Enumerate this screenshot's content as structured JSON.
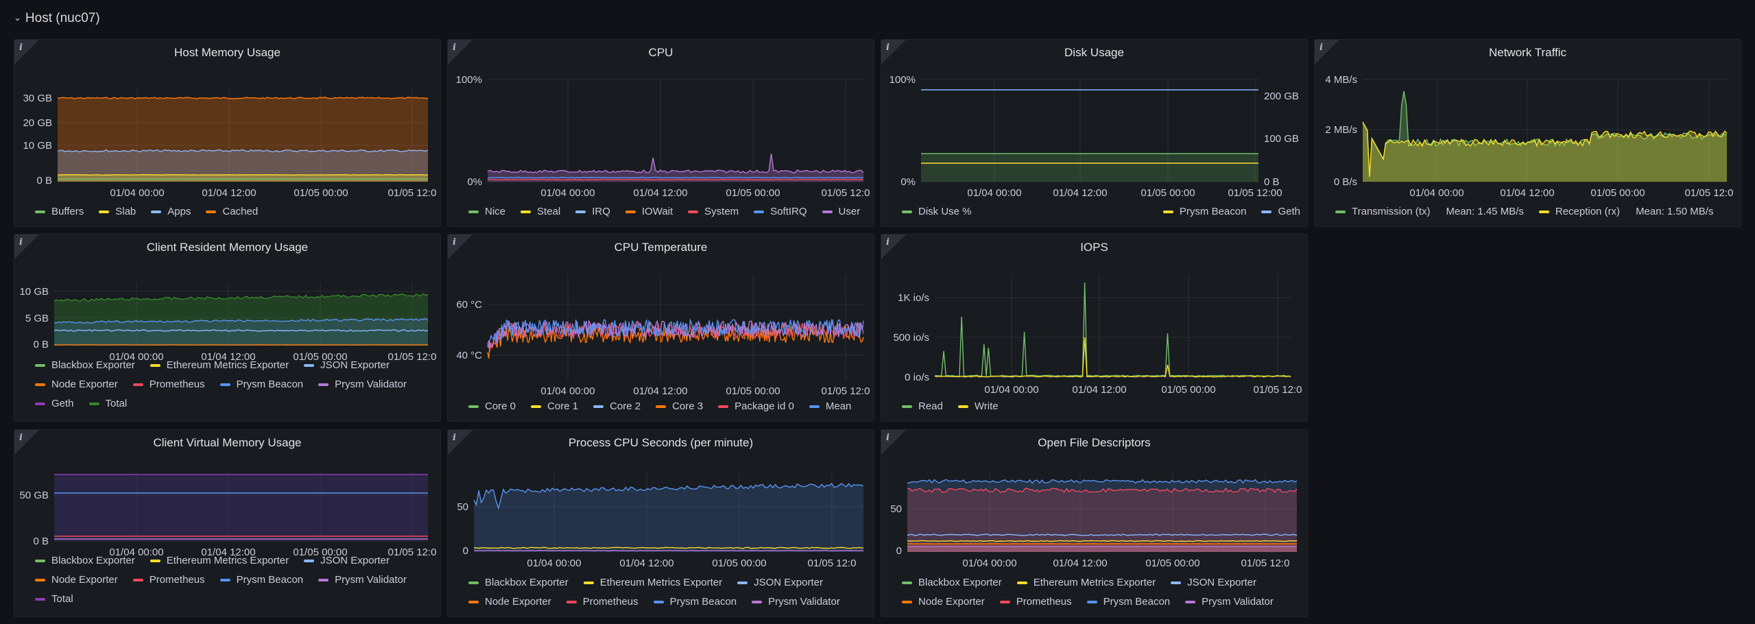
{
  "row": {
    "title": "Host (nuc07)",
    "chevron": "chevron-down-icon"
  },
  "colors": {
    "green": "#73bf69",
    "yellow": "#fade2a",
    "blue": "#8ab8ff",
    "orange": "#ff780a",
    "red": "#f2495c",
    "brightBlue": "#5794f2",
    "purple": "#b877d9",
    "darkPurple": "#8f3bb8",
    "darkGreen": "#37872d",
    "grid": "#2a2d33"
  },
  "panels": [
    {
      "id": "host-memory",
      "title": "Host Memory Usage",
      "yAxis": [
        "30 GB",
        "20 GB",
        "10 GB",
        "0 B"
      ],
      "xAxis": [
        "01/04 00:00",
        "01/04 12:00",
        "01/05 00:00",
        "01/05 12:0"
      ],
      "legend": [
        {
          "label": "Buffers",
          "color": "#73bf69"
        },
        {
          "label": "Slab",
          "color": "#fade2a"
        },
        {
          "label": "Apps",
          "color": "#8ab8ff"
        },
        {
          "label": "Cached",
          "color": "#ff780a"
        }
      ]
    },
    {
      "id": "cpu",
      "title": "CPU",
      "yAxis": [
        "100%",
        "0%"
      ],
      "xAxis": [
        "01/04 00:00",
        "01/04 12:00",
        "01/05 00:00",
        "01/05 12:0"
      ],
      "legend": [
        {
          "label": "Nice",
          "color": "#73bf69"
        },
        {
          "label": "Steal",
          "color": "#fade2a"
        },
        {
          "label": "IRQ",
          "color": "#8ab8ff"
        },
        {
          "label": "IOWait",
          "color": "#ff780a"
        },
        {
          "label": "System",
          "color": "#f2495c"
        },
        {
          "label": "SoftIRQ",
          "color": "#5794f2"
        },
        {
          "label": "User",
          "color": "#b877d9"
        }
      ]
    },
    {
      "id": "disk-usage",
      "title": "Disk Usage",
      "yAxis": [
        "100%",
        "0%"
      ],
      "yAxisRight": [
        "200 GB",
        "100 GB",
        "0 B"
      ],
      "xAxis": [
        "01/04 00:00",
        "01/04 12:00",
        "01/05 00:00",
        "01/05 12:00"
      ],
      "legendLeft": [
        {
          "label": "Disk Use %",
          "color": "#73bf69"
        }
      ],
      "legendRight": [
        {
          "label": "Prysm Beacon",
          "color": "#fade2a"
        },
        {
          "label": "Geth",
          "color": "#8ab8ff"
        }
      ]
    },
    {
      "id": "network",
      "title": "Network Traffic",
      "yAxis": [
        "4 MB/s",
        "2 MB/s",
        "0 B/s"
      ],
      "xAxis": [
        "01/04 00:00",
        "01/04 12:00",
        "01/05 00:00",
        "01/05 12:0"
      ],
      "legend": [
        {
          "label": "Transmission (tx)",
          "mean": "Mean: 1.45 MB/s",
          "color": "#73bf69"
        },
        {
          "label": "Reception (rx)",
          "mean": "Mean: 1.50 MB/s",
          "color": "#fade2a"
        }
      ]
    },
    {
      "id": "client-resident",
      "title": "Client Resident Memory Usage",
      "yAxis": [
        "10 GB",
        "5 GB",
        "0 B"
      ],
      "xAxis": [
        "01/04 00:00",
        "01/04 12:00",
        "01/05 00:00",
        "01/05 12:0"
      ],
      "legend": [
        {
          "label": "Blackbox Exporter",
          "color": "#73bf69"
        },
        {
          "label": "Ethereum Metrics Exporter",
          "color": "#fade2a"
        },
        {
          "label": "JSON Exporter",
          "color": "#8ab8ff"
        },
        {
          "label": "Node Exporter",
          "color": "#ff780a"
        },
        {
          "label": "Prometheus",
          "color": "#f2495c"
        },
        {
          "label": "Prysm Beacon",
          "color": "#5794f2"
        },
        {
          "label": "Prysm Validator",
          "color": "#b877d9"
        },
        {
          "label": "Geth",
          "color": "#8f3bb8"
        },
        {
          "label": "Total",
          "color": "#37872d"
        }
      ]
    },
    {
      "id": "cpu-temp",
      "title": "CPU Temperature",
      "yAxis": [
        "60 °C",
        "40 °C"
      ],
      "xAxis": [
        "01/04 00:00",
        "01/04 12:00",
        "01/05 00:00",
        "01/05 12:0"
      ],
      "legend": [
        {
          "label": "Core 0",
          "color": "#73bf69"
        },
        {
          "label": "Core 1",
          "color": "#fade2a"
        },
        {
          "label": "Core 2",
          "color": "#8ab8ff"
        },
        {
          "label": "Core 3",
          "color": "#ff780a"
        },
        {
          "label": "Package id 0",
          "color": "#f2495c"
        },
        {
          "label": "Mean",
          "color": "#5794f2"
        }
      ]
    },
    {
      "id": "iops",
      "title": "IOPS",
      "yAxis": [
        "1K io/s",
        "500 io/s",
        "0 io/s"
      ],
      "xAxis": [
        "01/04 00:00",
        "01/04 12:00",
        "01/05 00:00",
        "01/05 12:0"
      ],
      "legend": [
        {
          "label": "Read",
          "color": "#73bf69"
        },
        {
          "label": "Write",
          "color": "#fade2a"
        }
      ]
    },
    {
      "id": "client-virtual",
      "title": "Client Virtual Memory Usage",
      "yAxis": [
        "50 GB",
        "0 B"
      ],
      "xAxis": [
        "01/04 00:00",
        "01/04 12:00",
        "01/05 00:00",
        "01/05 12:0"
      ],
      "legend": [
        {
          "label": "Blackbox Exporter",
          "color": "#73bf69"
        },
        {
          "label": "Ethereum Metrics Exporter",
          "color": "#fade2a"
        },
        {
          "label": "JSON Exporter",
          "color": "#8ab8ff"
        },
        {
          "label": "Node Exporter",
          "color": "#ff780a"
        },
        {
          "label": "Prometheus",
          "color": "#f2495c"
        },
        {
          "label": "Prysm Beacon",
          "color": "#5794f2"
        },
        {
          "label": "Prysm Validator",
          "color": "#b877d9"
        },
        {
          "label": "Total",
          "color": "#8f3bb8"
        }
      ]
    },
    {
      "id": "process-cpu",
      "title": "Process CPU Seconds (per minute)",
      "yAxis": [
        "50",
        "0"
      ],
      "xAxis": [
        "01/04 00:00",
        "01/04 12:00",
        "01/05 00:00",
        "01/05 12:0"
      ],
      "legend": [
        {
          "label": "Blackbox Exporter",
          "color": "#73bf69"
        },
        {
          "label": "Ethereum Metrics Exporter",
          "color": "#fade2a"
        },
        {
          "label": "JSON Exporter",
          "color": "#8ab8ff"
        },
        {
          "label": "Node Exporter",
          "color": "#ff780a"
        },
        {
          "label": "Prometheus",
          "color": "#f2495c"
        },
        {
          "label": "Prysm Beacon",
          "color": "#5794f2"
        },
        {
          "label": "Prysm Validator",
          "color": "#b877d9"
        }
      ]
    },
    {
      "id": "open-fds",
      "title": "Open File Descriptors",
      "yAxis": [
        "50",
        "0"
      ],
      "xAxis": [
        "01/04 00:00",
        "01/04 12:00",
        "01/05 00:00",
        "01/05 12:0"
      ],
      "legend": [
        {
          "label": "Blackbox Exporter",
          "color": "#73bf69"
        },
        {
          "label": "Ethereum Metrics Exporter",
          "color": "#fade2a"
        },
        {
          "label": "JSON Exporter",
          "color": "#8ab8ff"
        },
        {
          "label": "Node Exporter",
          "color": "#ff780a"
        },
        {
          "label": "Prometheus",
          "color": "#f2495c"
        },
        {
          "label": "Prysm Beacon",
          "color": "#5794f2"
        },
        {
          "label": "Prysm Validator",
          "color": "#b877d9"
        }
      ]
    }
  ]
}
